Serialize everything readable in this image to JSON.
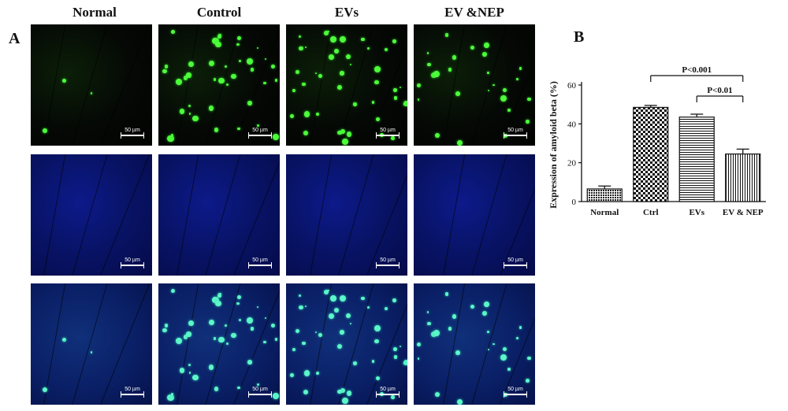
{
  "panel_a_label": "A",
  "panel_b_label": "B",
  "columns": [
    "Normal",
    "Control",
    "EVs",
    "EV &NEP"
  ],
  "scale_bar_label": "50 µm",
  "chart_data": {
    "type": "bar",
    "categories": [
      "Normal",
      "Ctrl",
      "EVs",
      "EV & NEP"
    ],
    "values": [
      6.5,
      48.5,
      43.5,
      24.5
    ],
    "errors": [
      1.5,
      1.0,
      1.5,
      2.5
    ],
    "title": "",
    "xlabel": "",
    "ylabel": "Expression of amyloid beta (%)",
    "ylim": [
      0,
      60
    ],
    "yticks": [
      0,
      20,
      40,
      60
    ],
    "patterns": [
      "dense-dots",
      "checkerboard",
      "horizontal-lines",
      "vertical-lines"
    ],
    "annotations": [
      {
        "text": "P<0.001",
        "from": "Ctrl",
        "to": "EV & NEP"
      },
      {
        "text": "P<0.01",
        "from": "EVs",
        "to": "EV & NEP"
      }
    ],
    "grid": false,
    "legend": "none"
  }
}
